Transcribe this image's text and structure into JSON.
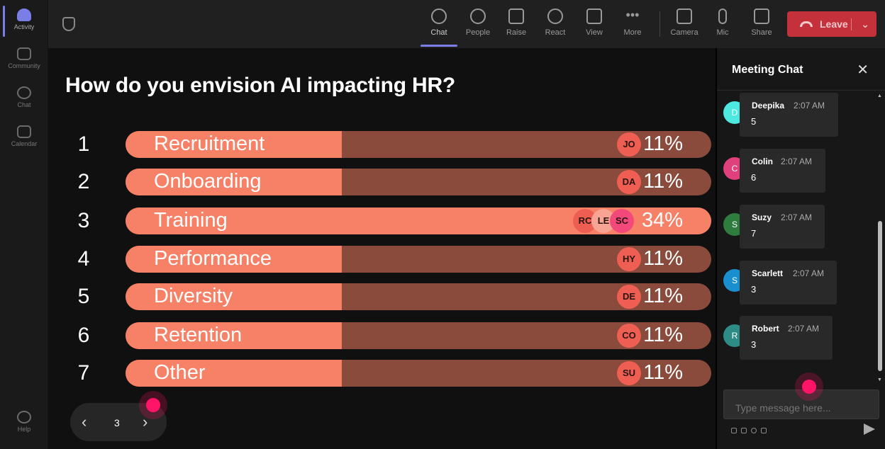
{
  "rail": {
    "items": [
      {
        "label": "Activity",
        "active": true
      },
      {
        "label": "Community"
      },
      {
        "label": "Chat"
      },
      {
        "label": "Calendar"
      },
      {
        "label": "Help"
      }
    ]
  },
  "toolbar": {
    "chat": "Chat",
    "people": "People",
    "raise": "Raise",
    "react": "React",
    "view": "View",
    "more": "More",
    "camera": "Camera",
    "mic": "Mic",
    "share": "Share",
    "leave": "Leave"
  },
  "poll": {
    "question": "How do you envision AI impacting HR?",
    "rows": [
      {
        "num": "1",
        "label": "Recruitment",
        "pct": "11%",
        "fill": 0.45,
        "voters": [
          "JO"
        ]
      },
      {
        "num": "2",
        "label": "Onboarding",
        "pct": "11%",
        "fill": 0.45,
        "voters": [
          "DA"
        ]
      },
      {
        "num": "3",
        "label": "Training",
        "pct": "34%",
        "fill": 1.0,
        "voters": [
          "RC",
          "LE",
          "SC"
        ]
      },
      {
        "num": "4",
        "label": "Performance",
        "pct": "11%",
        "fill": 0.45,
        "voters": [
          "HY"
        ]
      },
      {
        "num": "5",
        "label": "Diversity",
        "pct": "11%",
        "fill": 0.45,
        "voters": [
          "DE"
        ]
      },
      {
        "num": "6",
        "label": "Retention",
        "pct": "11%",
        "fill": 0.45,
        "voters": [
          "CO"
        ]
      },
      {
        "num": "7",
        "label": "Other",
        "pct": "11%",
        "fill": 0.45,
        "voters": [
          "SU"
        ]
      }
    ]
  },
  "pager": {
    "prev": "‹",
    "page": "3",
    "next": "›"
  },
  "chat": {
    "title": "Meeting Chat",
    "close": "✕",
    "messages": [
      {
        "initial": "D",
        "name": "Deepika",
        "time": "2:07 AM",
        "text": "5",
        "color": "#4de8e0"
      },
      {
        "initial": "C",
        "name": "Colin",
        "time": "2:07 AM",
        "text": "6",
        "color": "#e0407c"
      },
      {
        "initial": "S",
        "name": "Suzy",
        "time": "2:07 AM",
        "text": "7",
        "color": "#2e7d3e"
      },
      {
        "initial": "S",
        "name": "Scarlett",
        "time": "2:07 AM",
        "text": "3",
        "color": "#1a8fcf"
      },
      {
        "initial": "R",
        "name": "Robert",
        "time": "2:07 AM",
        "text": "3",
        "color": "#2e8c86"
      }
    ],
    "placeholder": "Type message here..."
  }
}
